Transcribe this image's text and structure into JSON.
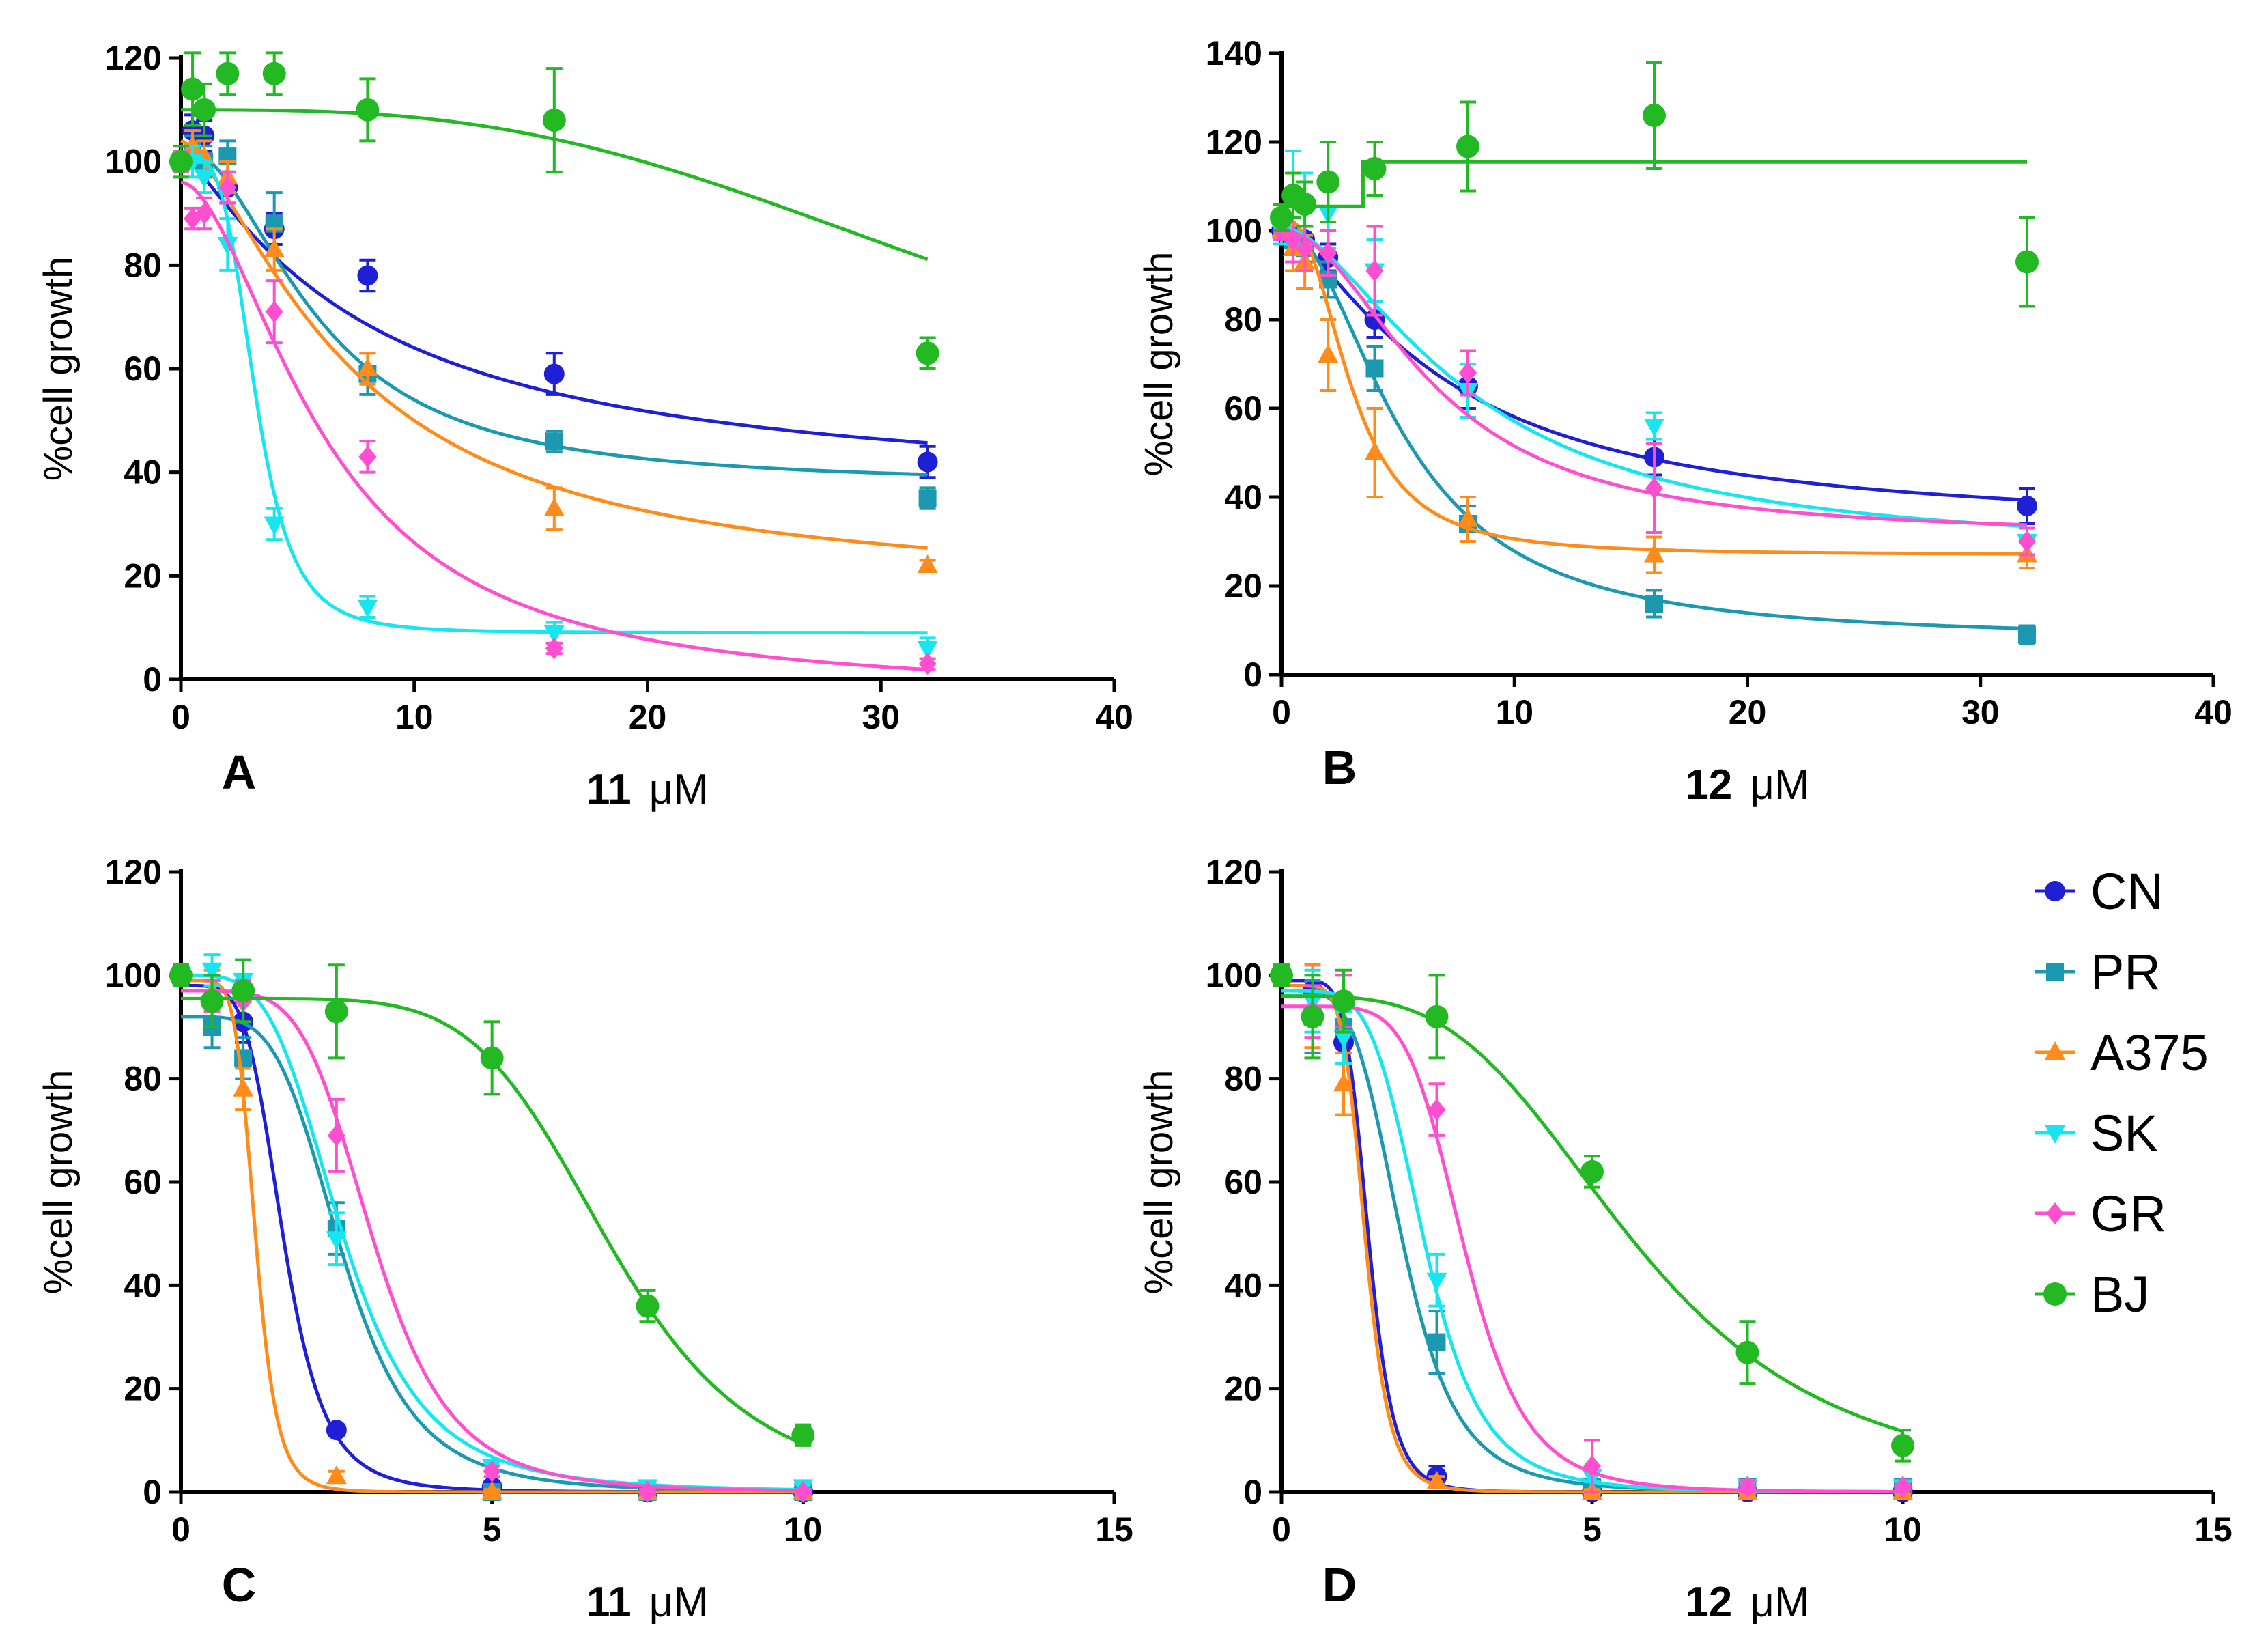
{
  "colors": {
    "CN": "#1f1fd6",
    "PR": "#1b99b0",
    "A375": "#ff8c1a",
    "SK": "#17e6f0",
    "GR": "#ff4fd0",
    "BJ": "#22b922"
  },
  "legend": [
    "CN",
    "PR",
    "A375",
    "SK",
    "GR",
    "BJ"
  ],
  "chart_data": [
    {
      "type": "scatter",
      "panel": "A",
      "compound": "11",
      "unit": "μM",
      "ylabel": "%cell growth",
      "xlim": [
        0,
        40
      ],
      "ylim": [
        0,
        120
      ],
      "xticks": [
        "0",
        "10",
        "20",
        "30",
        "40"
      ],
      "yticks": [
        "0",
        "20",
        "40",
        "60",
        "80",
        "100",
        "120"
      ],
      "series": [
        {
          "name": "CN",
          "x": [
            0,
            0.5,
            1,
            2,
            4,
            8,
            16,
            32
          ],
          "y": [
            100,
            106,
            105,
            95,
            87,
            78,
            59,
            42
          ],
          "err": [
            2,
            3,
            3,
            3,
            3,
            3,
            4,
            3
          ],
          "fit": {
            "type": "logistic",
            "bottom": 35,
            "top": 102,
            "ec50": 8,
            "hill": 1.2
          }
        },
        {
          "name": "PR",
          "x": [
            0,
            0.5,
            1,
            2,
            4,
            8,
            16,
            32
          ],
          "y": [
            100,
            102,
            100,
            101,
            88,
            59,
            46,
            35
          ],
          "err": [
            2,
            3,
            3,
            3,
            6,
            4,
            2,
            2
          ],
          "fit": {
            "type": "logistic",
            "bottom": 37.5,
            "top": 103,
            "ec50": 5.8,
            "hill": 2
          }
        },
        {
          "name": "A375",
          "x": [
            0,
            0.5,
            1,
            2,
            4,
            8,
            16,
            32
          ],
          "y": [
            100,
            103,
            101,
            97,
            83,
            60,
            33,
            22
          ],
          "err": [
            2,
            3,
            3,
            3,
            4,
            3,
            4,
            1
          ],
          "fit": {
            "type": "logistic",
            "bottom": 17,
            "top": 104,
            "ec50": 7.2,
            "hill": 1.5
          }
        },
        {
          "name": "SK",
          "x": [
            0,
            0.5,
            1,
            2,
            4,
            8,
            16,
            32
          ],
          "y": [
            100,
            100,
            97,
            84,
            30,
            14,
            9,
            6
          ],
          "err": [
            2,
            3,
            3,
            5,
            3,
            2,
            2,
            2
          ],
          "fit": {
            "type": "logistic",
            "bottom": 9,
            "top": 101,
            "ec50": 3.2,
            "hill": 4
          }
        },
        {
          "name": "GR",
          "x": [
            0,
            0.5,
            1,
            2,
            4,
            8,
            16,
            32
          ],
          "y": [
            100,
            89,
            90,
            95,
            71,
            43,
            6,
            3
          ],
          "err": [
            2,
            2,
            3,
            3,
            6,
            3,
            1,
            1
          ],
          "fit": {
            "type": "logistic",
            "bottom": -3,
            "top": 96,
            "ec50": 6.2,
            "hill": 1.8
          }
        },
        {
          "name": "BJ",
          "x": [
            0,
            0.5,
            1,
            2,
            4,
            8,
            16,
            32
          ],
          "y": [
            100,
            114,
            110,
            117,
            117,
            110,
            108,
            63
          ],
          "err": [
            3,
            7,
            5,
            4,
            4,
            6,
            10,
            3
          ],
          "fit": {
            "type": "logistic",
            "bottom": 40,
            "top": 110,
            "ec50": 36,
            "hill": 3
          }
        }
      ]
    },
    {
      "type": "scatter",
      "panel": "B",
      "compound": "12",
      "unit": "μM",
      "ylabel": "%cell growth",
      "xlim": [
        0,
        40
      ],
      "ylim": [
        0,
        140
      ],
      "xticks": [
        "0",
        "10",
        "20",
        "30",
        "40"
      ],
      "yticks": [
        "0",
        "20",
        "40",
        "60",
        "80",
        "100",
        "120",
        "140"
      ],
      "series": [
        {
          "name": "CN",
          "x": [
            0,
            0.5,
            1,
            2,
            4,
            8,
            16,
            32
          ],
          "y": [
            100,
            99,
            98,
            94,
            80,
            65,
            49,
            38
          ],
          "err": [
            2,
            2,
            3,
            3,
            4,
            5,
            4,
            4
          ],
          "fit": {
            "type": "logistic",
            "bottom": 32,
            "top": 101,
            "ec50": 7,
            "hill": 1.4
          }
        },
        {
          "name": "PR",
          "x": [
            0,
            0.5,
            1,
            2,
            4,
            8,
            16,
            32
          ],
          "y": [
            100,
            98,
            96,
            89,
            69,
            34,
            16,
            9
          ],
          "err": [
            2,
            3,
            3,
            4,
            5,
            4,
            3,
            2
          ],
          "fit": {
            "type": "logistic",
            "bottom": 8,
            "top": 101,
            "ec50": 5.2,
            "hill": 2
          }
        },
        {
          "name": "A375",
          "x": [
            0,
            0.5,
            1,
            2,
            4,
            8,
            16,
            32
          ],
          "y": [
            100,
            96,
            93,
            72,
            50,
            35,
            27,
            27
          ],
          "err": [
            3,
            5,
            6,
            8,
            10,
            5,
            4,
            3
          ],
          "fit": {
            "type": "logistic",
            "bottom": 27,
            "top": 103,
            "ec50": 3,
            "hill": 2.5
          }
        },
        {
          "name": "SK",
          "x": [
            0,
            0.5,
            1,
            2,
            4,
            8,
            16,
            32
          ],
          "y": [
            100,
            108,
            105,
            104,
            91,
            64,
            56,
            30
          ],
          "err": [
            3,
            10,
            8,
            8,
            7,
            6,
            3,
            3
          ],
          "fit": {
            "type": "logistic",
            "bottom": 27,
            "top": 101,
            "ec50": 8,
            "hill": 1.7
          }
        },
        {
          "name": "GR",
          "x": [
            0,
            0.5,
            1,
            2,
            4,
            8,
            16,
            32
          ],
          "y": [
            100,
            98,
            96,
            95,
            91,
            68,
            42,
            30
          ],
          "err": [
            2,
            5,
            5,
            5,
            10,
            5,
            10,
            3
          ],
          "fit": {
            "type": "logistic",
            "bottom": 31,
            "top": 100,
            "ec50": 6.5,
            "hill": 2
          }
        },
        {
          "name": "BJ",
          "x": [
            0,
            0.5,
            1,
            2,
            4,
            8,
            16,
            32
          ],
          "y": [
            103,
            108,
            106,
            111,
            114,
            119,
            126,
            93
          ],
          "err": [
            3,
            5,
            5,
            9,
            6,
            10,
            12,
            10
          ],
          "fit": {
            "type": "step",
            "low": 105.5,
            "high": 115.5,
            "at": 3.5,
            "end": 32
          }
        }
      ]
    },
    {
      "type": "scatter",
      "panel": "C",
      "compound": "11",
      "unit": "μM",
      "ylabel": "%cell growth",
      "xlim": [
        0,
        15
      ],
      "ylim": [
        0,
        120
      ],
      "xticks": [
        "0",
        "5",
        "10",
        "15"
      ],
      "yticks": [
        "0",
        "20",
        "40",
        "60",
        "80",
        "100",
        "120"
      ],
      "series": [
        {
          "name": "CN",
          "x": [
            0,
            0.5,
            1,
            2.5,
            5,
            7.5,
            10
          ],
          "y": [
            100,
            95,
            91,
            12,
            1,
            0,
            0
          ],
          "err": [
            2,
            4,
            4,
            1,
            1,
            0.5,
            0.5
          ],
          "fit": {
            "type": "logistic",
            "bottom": 0,
            "top": 98,
            "ec50": 1.65,
            "hill": 5
          }
        },
        {
          "name": "PR",
          "x": [
            0,
            0.5,
            1,
            2.5,
            5,
            7.5,
            10
          ],
          "y": [
            100,
            90,
            84,
            51,
            0,
            0,
            0
          ],
          "err": [
            2,
            4,
            4,
            5,
            0.5,
            0.5,
            0.5
          ],
          "fit": {
            "type": "logistic",
            "bottom": 0,
            "top": 92,
            "ec50": 2.6,
            "hill": 4.5
          }
        },
        {
          "name": "A375",
          "x": [
            0,
            0.5,
            1,
            2.5,
            5,
            7.5,
            10
          ],
          "y": [
            100,
            97,
            78,
            3,
            0,
            0,
            0
          ],
          "err": [
            2,
            4,
            4,
            1,
            0.5,
            0.5,
            0.5
          ],
          "fit": {
            "type": "logistic",
            "bottom": 0,
            "top": 99,
            "ec50": 1.2,
            "hill": 7
          }
        },
        {
          "name": "SK",
          "x": [
            0,
            0.5,
            1,
            2.5,
            5,
            7.5,
            10
          ],
          "y": [
            100,
            101,
            99,
            49,
            5,
            1,
            1
          ],
          "err": [
            2,
            3,
            4,
            5,
            1,
            1,
            0.5
          ],
          "fit": {
            "type": "logistic",
            "bottom": 0,
            "top": 100,
            "ec50": 2.6,
            "hill": 4
          }
        },
        {
          "name": "GR",
          "x": [
            0,
            0.5,
            1,
            2.5,
            5,
            7.5,
            10
          ],
          "y": [
            100,
            96,
            95,
            69,
            4,
            0,
            0
          ],
          "err": [
            2,
            3,
            4,
            7,
            1,
            0.5,
            0.5
          ],
          "fit": {
            "type": "logistic",
            "bottom": 0,
            "top": 97,
            "ec50": 3.1,
            "hill": 5
          }
        },
        {
          "name": "BJ",
          "x": [
            0,
            0.5,
            1,
            2.5,
            5,
            7.5,
            10
          ],
          "y": [
            100,
            95,
            97,
            93,
            84,
            36,
            11
          ],
          "err": [
            2,
            5,
            6,
            9,
            7,
            3,
            2
          ],
          "fit": {
            "type": "logistic",
            "bottom": 0,
            "top": 95.5,
            "ec50": 6.9,
            "hill": 6
          }
        }
      ]
    },
    {
      "type": "scatter",
      "panel": "D",
      "compound": "12",
      "unit": "μM",
      "ylabel": "%cell growth",
      "xlim": [
        0,
        15
      ],
      "ylim": [
        0,
        120
      ],
      "xticks": [
        "0",
        "5",
        "10",
        "15"
      ],
      "yticks": [
        "0",
        "20",
        "40",
        "60",
        "80",
        "100",
        "120"
      ],
      "series": [
        {
          "name": "CN",
          "x": [
            0,
            0.5,
            1,
            2.5,
            5,
            7.5,
            10
          ],
          "y": [
            100,
            97,
            87,
            3,
            0,
            0,
            0
          ],
          "err": [
            2,
            5,
            4,
            2,
            0.5,
            0.5,
            0.5
          ],
          "fit": {
            "type": "logistic",
            "bottom": 0,
            "top": 99,
            "ec50": 1.4,
            "hill": 7
          }
        },
        {
          "name": "PR",
          "x": [
            0,
            0.5,
            1,
            2.5,
            5,
            7.5,
            10
          ],
          "y": [
            100,
            92,
            90,
            29,
            1,
            1,
            1
          ],
          "err": [
            2,
            7,
            5,
            6,
            1,
            1,
            0.5
          ],
          "fit": {
            "type": "logistic",
            "bottom": 0,
            "top": 97,
            "ec50": 1.95,
            "hill": 4.5
          }
        },
        {
          "name": "A375",
          "x": [
            0,
            0.5,
            1,
            2.5,
            5,
            7.5,
            10
          ],
          "y": [
            100,
            94,
            79,
            2,
            0,
            0,
            0
          ],
          "err": [
            2,
            8,
            6,
            1,
            0.5,
            0.5,
            0.5
          ],
          "fit": {
            "type": "logistic",
            "bottom": 0,
            "top": 98,
            "ec50": 1.35,
            "hill": 7
          }
        },
        {
          "name": "SK",
          "x": [
            0,
            0.5,
            1,
            2.5,
            5,
            7.5,
            10
          ],
          "y": [
            100,
            95,
            88,
            41,
            3,
            1,
            1
          ],
          "err": [
            2,
            6,
            5,
            5,
            1,
            1,
            0.5
          ],
          "fit": {
            "type": "logistic",
            "bottom": 0,
            "top": 97,
            "ec50": 2.3,
            "hill": 5
          }
        },
        {
          "name": "GR",
          "x": [
            0,
            0.5,
            1,
            2.5,
            5,
            7.5,
            10
          ],
          "y": [
            100,
            93,
            95,
            74,
            5,
            1,
            1
          ],
          "err": [
            2,
            5,
            5,
            5,
            5,
            1,
            0.5
          ],
          "fit": {
            "type": "logistic",
            "bottom": 0,
            "top": 94,
            "ec50": 2.95,
            "hill": 6
          }
        },
        {
          "name": "BJ",
          "x": [
            0,
            0.5,
            1,
            2.5,
            5,
            7.5,
            10
          ],
          "y": [
            100,
            92,
            95,
            92,
            62,
            27,
            9
          ],
          "err": [
            2,
            8,
            6,
            8,
            3,
            6,
            3
          ],
          "fit": {
            "type": "logistic",
            "bottom": 0,
            "top": 96,
            "ec50": 5.7,
            "hill": 3.5
          }
        }
      ]
    }
  ]
}
